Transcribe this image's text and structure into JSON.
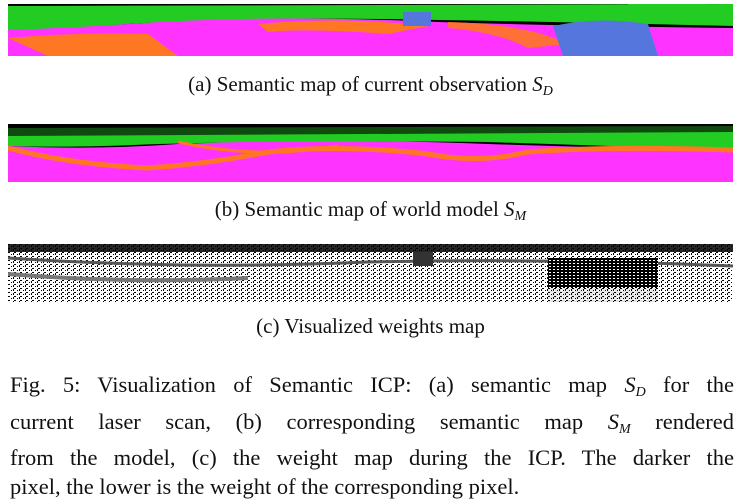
{
  "panels": {
    "a": {
      "caption_prefix": "(a) Semantic map of current observation",
      "symbol": "S",
      "subscript": "D"
    },
    "b": {
      "caption_prefix": "(b) Semantic map of world model",
      "symbol": "S",
      "subscript": "M"
    },
    "c": {
      "caption": "(c) Visualized weights map"
    }
  },
  "figure_caption": {
    "lines": [
      [
        "Fig. 5: Visualization of Semantic ICP: (a) semantic map ",
        "S",
        "D",
        " for the"
      ],
      [
        "current laser scan, (b) corresponding semantic map ",
        "S",
        "M",
        " rendered"
      ],
      [
        "from the model, (c) the weight map during the ICP. The darker the",
        "",
        "",
        ""
      ],
      [
        "pixel, the lower is the weight of the corresponding pixel.",
        "",
        "",
        ""
      ]
    ]
  },
  "colors": {
    "vegetation": "#22cc22",
    "road": "#ff33ff",
    "sidewalk": "#ff7722",
    "car": "#5577dd",
    "sky": "#000000",
    "dark_green": "#0f4a0f"
  }
}
